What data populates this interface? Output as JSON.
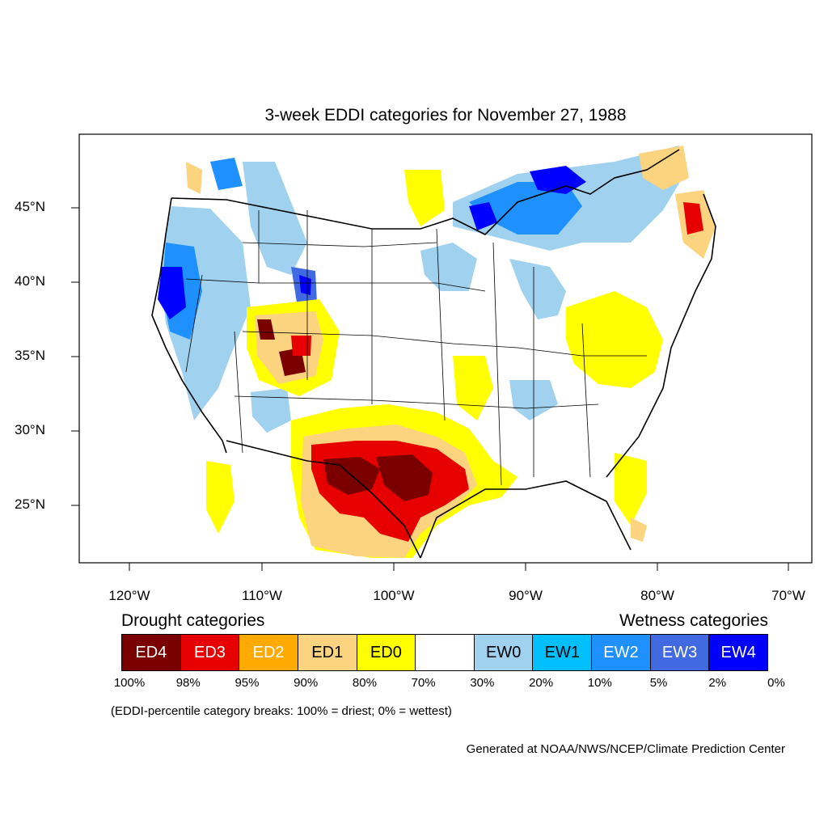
{
  "title": "3-week EDDI categories for November 27, 1988",
  "lat_labels": [
    "45°N",
    "40°N",
    "35°N",
    "30°N",
    "25°N"
  ],
  "lon_labels": [
    "120°W",
    "110°W",
    "100°W",
    "90°W",
    "80°W",
    "70°W"
  ],
  "legend": {
    "drought_heading": "Drought categories",
    "wetness_heading": "Wetness categories",
    "categories": [
      {
        "label": "ED4",
        "color": "#7a0000",
        "text_color": "#ffffff"
      },
      {
        "label": "ED3",
        "color": "#e60000",
        "text_color": "#ffffff"
      },
      {
        "label": "ED2",
        "color": "#ffaa00",
        "text_color": "#ffffff"
      },
      {
        "label": "ED1",
        "color": "#fcd37f",
        "text_color": "#000000"
      },
      {
        "label": "ED0",
        "color": "#ffff00",
        "text_color": "#000000"
      },
      {
        "label": "",
        "color": "#ffffff",
        "text_color": "#000000"
      },
      {
        "label": "EW0",
        "color": "#a0d2f0",
        "text_color": "#000000"
      },
      {
        "label": "EW1",
        "color": "#00bfff",
        "text_color": "#000000"
      },
      {
        "label": "EW2",
        "color": "#1e90ff",
        "text_color": "#ffffff"
      },
      {
        "label": "EW3",
        "color": "#4169e1",
        "text_color": "#ffffff"
      },
      {
        "label": "EW4",
        "color": "#0000ff",
        "text_color": "#ffffff"
      }
    ],
    "percent_breaks": [
      "100%",
      "98%",
      "95%",
      "90%",
      "80%",
      "70%",
      "30%",
      "20%",
      "10%",
      "5%",
      "2%",
      "0%"
    ]
  },
  "note": "(EDDI-percentile category breaks: 100% = driest; 0% = wettest)",
  "credit": "Generated at NOAA/NWS/NCEP/Climate Prediction Center"
}
